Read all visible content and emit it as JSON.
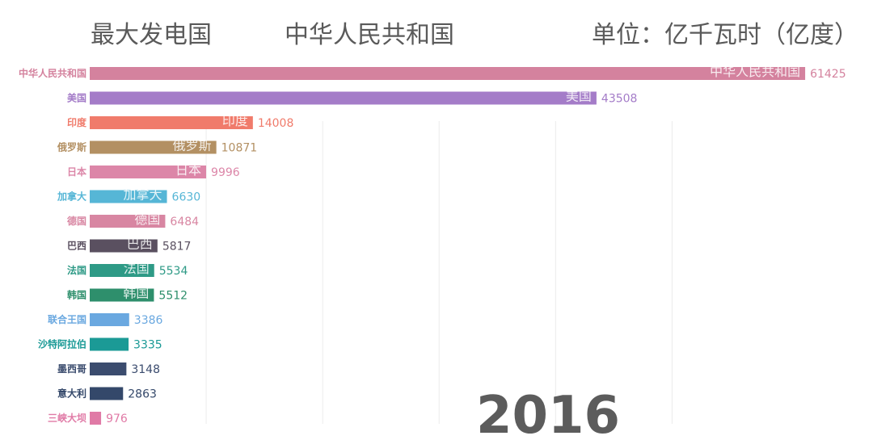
{
  "header": {
    "title": "最大发电国",
    "leader": "中华人民共和国",
    "unit": "单位：亿千瓦时（亿度）"
  },
  "chart_data": {
    "type": "bar",
    "orientation": "horizontal",
    "year": "2016",
    "xlim": [
      0,
      66000
    ],
    "grid": true,
    "categories": [
      "中华人民共和国",
      "美国",
      "印度",
      "俄罗斯",
      "日本",
      "加拿大",
      "德国",
      "巴西",
      "法国",
      "韩国",
      "联合王国",
      "沙特阿拉伯",
      "墨西哥",
      "意大利",
      "三峡大坝"
    ],
    "values": [
      61425,
      43508,
      14008,
      10871,
      9996,
      6630,
      6484,
      5817,
      5534,
      5512,
      3386,
      3335,
      3148,
      2863,
      976
    ],
    "colors": [
      "#d4829e",
      "#a47cc8",
      "#f07b6b",
      "#b39063",
      "#dc86a8",
      "#56b6d6",
      "#d886a2",
      "#5a5060",
      "#2e9a86",
      "#2e8f6c",
      "#6aa8e0",
      "#1b9a96",
      "#3b4c6e",
      "#34486a",
      "#e07aa6"
    ],
    "inbar_labels": [
      "中华人民共和国",
      "美国",
      "印度",
      "俄罗斯",
      "日本",
      "加拿大",
      "德国",
      "巴西",
      "法国",
      "韩国",
      "",
      "",
      "",
      "",
      ""
    ]
  }
}
